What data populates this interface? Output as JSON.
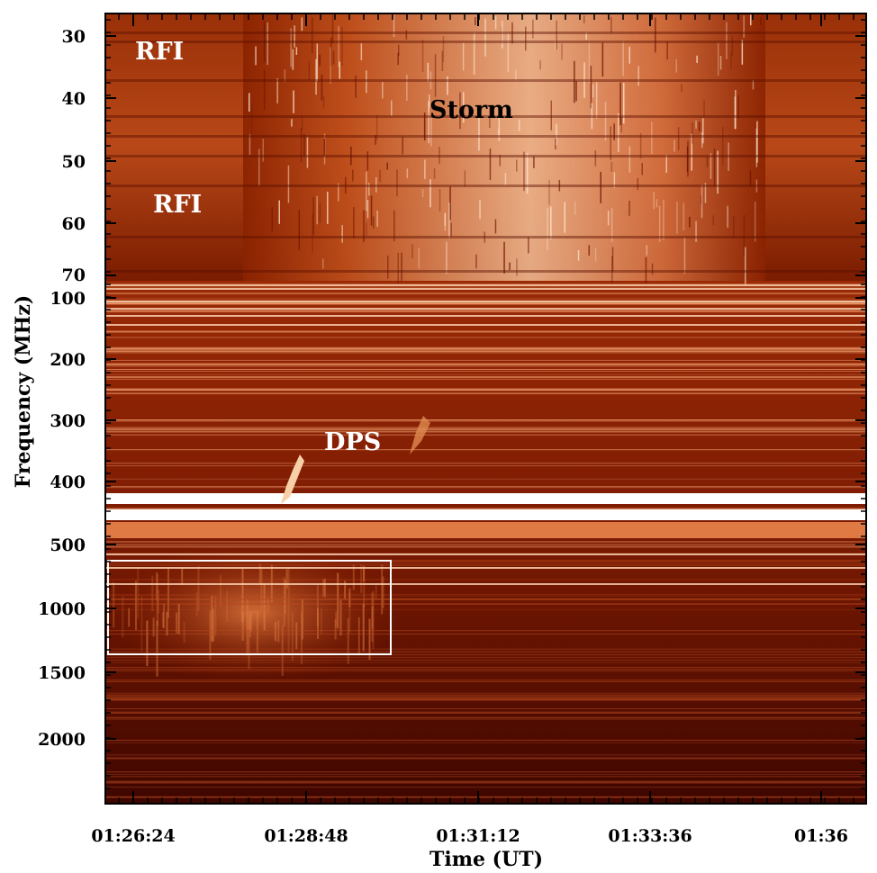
{
  "chart_data": {
    "type": "heatmap",
    "xlabel": "Time (UT)",
    "ylabel": "Frequency (MHz)",
    "x_ticks": [
      "01:26:24",
      "01:28:48",
      "01:31:12",
      "01:33:36",
      "01:36"
    ],
    "y_ticks_low_band": [
      "30",
      "40",
      "50",
      "60",
      "70"
    ],
    "y_ticks_high_band": [
      "100",
      "200",
      "300",
      "400",
      "500",
      "1000",
      "1500",
      "2000"
    ],
    "annotations": [
      {
        "text": "RFI",
        "color": "#ffffff"
      },
      {
        "text": "Storm",
        "color": "#000000"
      },
      {
        "text": "RFI",
        "color": "#ffffff"
      },
      {
        "text": "DPS",
        "color": "#ffffff"
      }
    ],
    "colormap": [
      "#2a0000",
      "#6a0c00",
      "#a8320a",
      "#d8703a",
      "#f4c6a0",
      "#ffffff"
    ],
    "box_color": "#ffffff"
  }
}
